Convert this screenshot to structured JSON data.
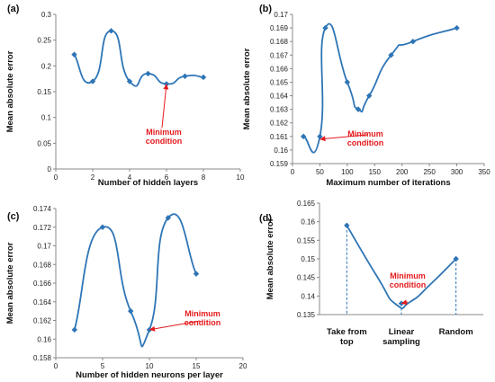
{
  "chart_data": [
    {
      "panel": "(a)",
      "type": "line",
      "xlabel": "Number of hidden layers",
      "ylabel": "Mean absolute error",
      "xlim": [
        0,
        10
      ],
      "ylim": [
        0,
        0.3
      ],
      "xticks": [
        0,
        2,
        4,
        6,
        8,
        10
      ],
      "yticks": [
        0,
        0.05,
        0.1,
        0.15,
        0.2,
        0.25,
        0.3
      ],
      "ytick_labels": [
        "0",
        "0.05",
        "0.1",
        "0.15",
        "0.2",
        "0.25",
        "0.3"
      ],
      "x": [
        1,
        2,
        3,
        4,
        5,
        6,
        7,
        8
      ],
      "y": [
        0.222,
        0.17,
        0.268,
        0.17,
        0.185,
        0.165,
        0.18,
        0.178
      ],
      "annotation": {
        "text": [
          "Minimum",
          "condition"
        ],
        "x": 6,
        "y": 0.165
      },
      "color": "#2e75b6",
      "annotation_color": "#e41a1c"
    },
    {
      "panel": "(b)",
      "type": "line",
      "xlabel": "Maximum number of iterations",
      "ylabel": "Mean absolute error",
      "xlim": [
        0,
        350
      ],
      "ylim": [
        0.159,
        0.17
      ],
      "xticks": [
        0,
        50,
        100,
        150,
        200,
        250,
        300,
        350
      ],
      "yticks": [
        0.159,
        0.16,
        0.161,
        0.162,
        0.163,
        0.164,
        0.165,
        0.166,
        0.167,
        0.168,
        0.169,
        0.17
      ],
      "ytick_labels": [
        "0.159",
        "0.16",
        "0.161",
        "0.162",
        "0.163",
        "0.164",
        "0.165",
        "0.166",
        "0.167",
        "0.168",
        "0.169",
        "0.17"
      ],
      "x": [
        20,
        50,
        60,
        100,
        120,
        140,
        180,
        220,
        300
      ],
      "y": [
        0.161,
        0.161,
        0.169,
        0.165,
        0.163,
        0.164,
        0.167,
        0.168,
        0.169
      ],
      "annotation": {
        "text": [
          "Minimum",
          "condition"
        ],
        "x": 50,
        "y": 0.1608
      },
      "color": "#2e75b6",
      "annotation_color": "#e41a1c"
    },
    {
      "panel": "(c)",
      "type": "line",
      "xlabel": "Number of hidden neurons per layer",
      "ylabel": "Mean absolute error",
      "xlim": [
        0,
        20
      ],
      "ylim": [
        0.158,
        0.174
      ],
      "xticks": [
        0,
        5,
        10,
        15,
        20
      ],
      "yticks": [
        0.158,
        0.16,
        0.162,
        0.164,
        0.166,
        0.168,
        0.17,
        0.172,
        0.174
      ],
      "ytick_labels": [
        "0.158",
        "0.16",
        "0.162",
        "0.164",
        "0.166",
        "0.168",
        "0.17",
        "0.172",
        "0.174"
      ],
      "x": [
        2,
        5,
        8,
        10,
        12,
        15
      ],
      "y": [
        0.161,
        0.172,
        0.163,
        0.161,
        0.173,
        0.167
      ],
      "annotation": {
        "text": [
          "Minimum",
          "condition"
        ],
        "x": 10,
        "y": 0.161
      },
      "color": "#2e75b6",
      "annotation_color": "#e41a1c"
    },
    {
      "panel": "(d)",
      "type": "line",
      "xlabel": "",
      "ylabel": "Mean absolute error",
      "categories": [
        [
          "Take from",
          "top"
        ],
        [
          "Linear",
          "sampling"
        ],
        [
          "Random"
        ]
      ],
      "ylim": [
        0.135,
        0.165
      ],
      "yticks": [
        0.135,
        0.14,
        0.145,
        0.15,
        0.155,
        0.16,
        0.165
      ],
      "ytick_labels": [
        "0.135",
        "0.14",
        "0.145",
        "0.15",
        "0.155",
        "0.16",
        "0.165"
      ],
      "values": [
        0.159,
        0.138,
        0.15
      ],
      "annotation": {
        "text": [
          "Minimum",
          "condition"
        ],
        "category": 1,
        "y": 0.138
      },
      "color": "#2e75b6",
      "annotation_color": "#e41a1c"
    }
  ]
}
